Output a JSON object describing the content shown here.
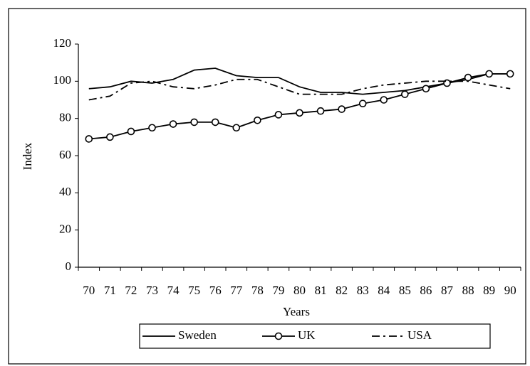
{
  "chart_data": {
    "type": "line",
    "y_label": "Index",
    "x_label": "Years",
    "categories": [
      "70",
      "71",
      "72",
      "73",
      "74",
      "75",
      "76",
      "77",
      "78",
      "79",
      "80",
      "81",
      "82",
      "83",
      "84",
      "85",
      "86",
      "87",
      "88",
      "89",
      "90"
    ],
    "series": [
      {
        "name": "Sweden",
        "color": "#000000",
        "line_style": "solid",
        "values": [
          96,
          97,
          100,
          99,
          101,
          106,
          107,
          103,
          102,
          102,
          97,
          94,
          94,
          93,
          94,
          95,
          97,
          99,
          101,
          104,
          104
        ]
      },
      {
        "name": "UK",
        "color": "#000000",
        "line_style": "solid",
        "marker": "circle",
        "values": [
          69,
          70,
          73,
          75,
          77,
          78,
          78,
          75,
          79,
          82,
          83,
          84,
          85,
          88,
          90,
          93,
          96,
          99,
          102,
          104,
          104
        ]
      },
      {
        "name": "USA",
        "color": "#000000",
        "line_style": "dashdot",
        "values": [
          90,
          92,
          99,
          100,
          97,
          96,
          98,
          101,
          101,
          97,
          93,
          93,
          93,
          96,
          98,
          99,
          100,
          100,
          100,
          98,
          96
        ]
      }
    ],
    "ylim": [
      0,
      120
    ],
    "yticks": [
      0,
      20,
      40,
      60,
      80,
      100,
      120
    ],
    "grid": false,
    "legend": "bottom"
  }
}
